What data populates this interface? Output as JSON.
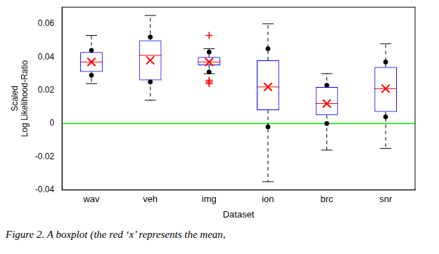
{
  "chart_data": {
    "type": "boxplot",
    "x_label": "Dataset",
    "y_label": [
      "Scaled",
      "Log Likelihood-Ratio"
    ],
    "caption": "Figure 2. A boxplot (the red ‘x’ represents the mean,",
    "categories": [
      "wav",
      "veh",
      "img",
      "ion",
      "brc",
      "snr"
    ],
    "color": "#0000ff",
    "reference_line": 0,
    "grid": false,
    "ylim": [
      -0.04,
      0.07
    ],
    "yticks": [
      -0.04,
      -0.02,
      0,
      0.02,
      0.04,
      0.06
    ],
    "boxes": [
      {
        "whisker_low": 0.024,
        "q1": 0.031,
        "median": 0.037,
        "q3": 0.043,
        "whisker_high": 0.053,
        "mean": 0.037,
        "dots": [
          0.044,
          0.029
        ],
        "outliers": []
      },
      {
        "whisker_low": 0.014,
        "q1": 0.026,
        "median": 0.041,
        "q3": 0.05,
        "whisker_high": 0.065,
        "mean": 0.038,
        "dots": [
          0.052,
          0.025
        ],
        "outliers": []
      },
      {
        "whisker_low": 0.03,
        "q1": 0.035,
        "median": 0.037,
        "q3": 0.04,
        "whisker_high": 0.045,
        "mean": 0.037,
        "dots": [
          0.043,
          0.031
        ],
        "outliers": [
          0.053,
          0.026,
          0.025,
          0.024
        ]
      },
      {
        "whisker_low": -0.035,
        "q1": 0.008,
        "median": 0.022,
        "q3": 0.038,
        "whisker_high": 0.06,
        "mean": 0.022,
        "dots": [
          0.045,
          -0.002
        ],
        "outliers": []
      },
      {
        "whisker_low": -0.016,
        "q1": 0.005,
        "median": 0.012,
        "q3": 0.022,
        "whisker_high": 0.03,
        "mean": 0.012,
        "dots": [
          0.023,
          0.0
        ],
        "outliers": []
      },
      {
        "whisker_low": -0.015,
        "q1": 0.007,
        "median": 0.021,
        "q3": 0.034,
        "whisker_high": 0.048,
        "mean": 0.021,
        "dots": [
          0.037,
          0.004
        ],
        "outliers": []
      }
    ]
  }
}
